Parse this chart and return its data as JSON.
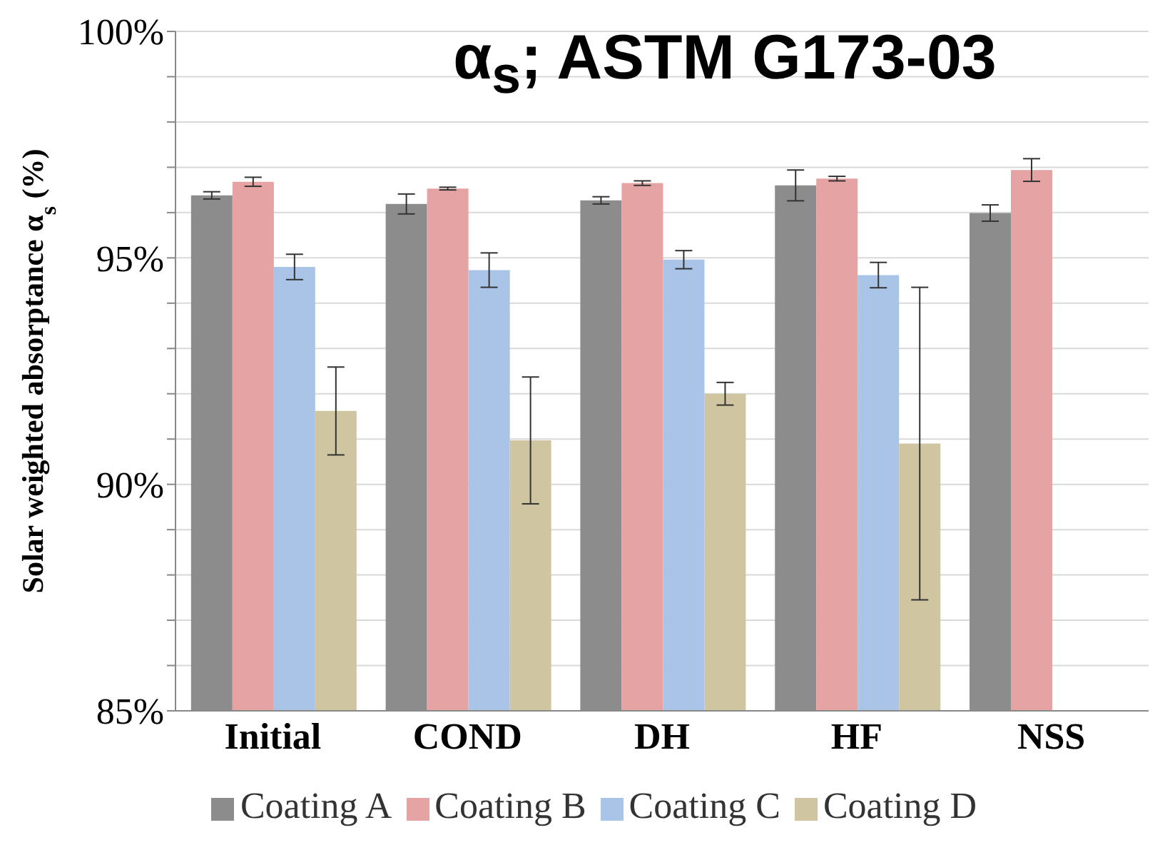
{
  "chart_data": {
    "type": "bar",
    "title": "α$_{s}$; ASTM G173-03",
    "ylabel": "Solar weighted absorptance α$_{s}$ (%)",
    "categories": [
      "Initial",
      "COND",
      "DH",
      "HF",
      "NSS"
    ],
    "series": [
      {
        "name": "Coating A",
        "color": "#8c8c8c",
        "values": [
          96.38,
          96.19,
          96.27,
          96.6,
          95.99
        ],
        "errors": [
          0.08,
          0.22,
          0.08,
          0.34,
          0.18
        ]
      },
      {
        "name": "Coating B",
        "color": "#e6a3a3",
        "values": [
          96.68,
          96.53,
          96.65,
          96.75,
          96.94
        ],
        "errors": [
          0.1,
          0.03,
          0.05,
          0.05,
          0.25
        ]
      },
      {
        "name": "Coating C",
        "color": "#a9c4e6",
        "values": [
          94.8,
          94.73,
          94.96,
          94.62,
          null
        ],
        "errors": [
          0.28,
          0.38,
          0.2,
          0.28,
          null
        ]
      },
      {
        "name": "Coating D",
        "color": "#cfc5a0",
        "values": [
          91.62,
          90.97,
          92.0,
          90.9,
          null
        ],
        "errors": [
          0.97,
          1.4,
          0.25,
          3.45,
          null
        ]
      }
    ],
    "ylim": [
      85,
      100
    ],
    "yticks": [
      {
        "value": 85,
        "label": "85%"
      },
      {
        "value": 86,
        "label": null
      },
      {
        "value": 87,
        "label": null
      },
      {
        "value": 88,
        "label": null
      },
      {
        "value": 89,
        "label": null
      },
      {
        "value": 90,
        "label": "90%"
      },
      {
        "value": 91,
        "label": null
      },
      {
        "value": 92,
        "label": null
      },
      {
        "value": 93,
        "label": null
      },
      {
        "value": 94,
        "label": null
      },
      {
        "value": 95,
        "label": "95%"
      },
      {
        "value": 96,
        "label": null
      },
      {
        "value": 97,
        "label": null
      },
      {
        "value": 98,
        "label": null
      },
      {
        "value": 99,
        "label": null
      },
      {
        "value": 100,
        "label": "100%"
      }
    ],
    "grid": "y",
    "legend": "bottom"
  }
}
